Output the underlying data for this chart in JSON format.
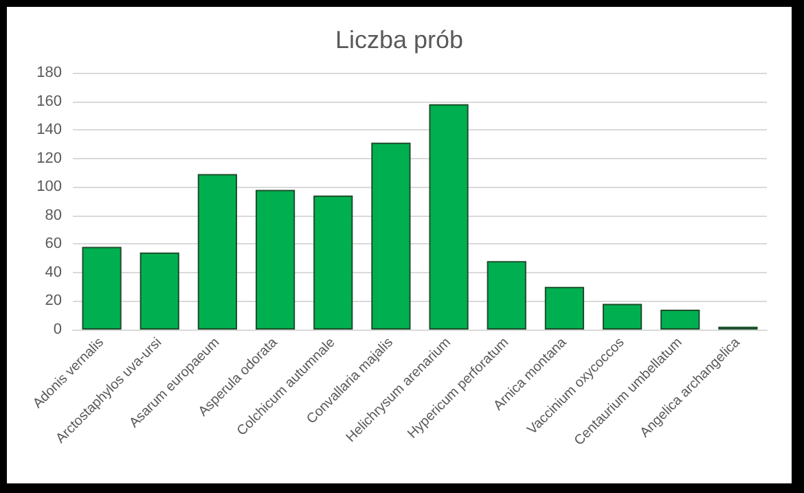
{
  "chart_data": {
    "type": "bar",
    "title": "Liczba prób",
    "categories": [
      "Adonis vernalis",
      "Arctostaphylos uva-ursi",
      "Asarum europaeum",
      "Asperula odorata",
      "Colchicum autumnale",
      "Convallaria majalis",
      "Helichrysum arenarium",
      "Hypericum perforatum",
      "Arnica montana",
      "Vaccinium oxycoccos",
      "Centaurium umbellatum",
      "Angelica archangelica"
    ],
    "values": [
      58,
      54,
      109,
      98,
      94,
      131,
      158,
      48,
      30,
      18,
      14,
      2
    ],
    "color": "#00b050",
    "ylim": [
      0,
      180
    ],
    "yticks": [
      0,
      20,
      40,
      60,
      80,
      100,
      120,
      140,
      160,
      180
    ],
    "grid": "y"
  }
}
